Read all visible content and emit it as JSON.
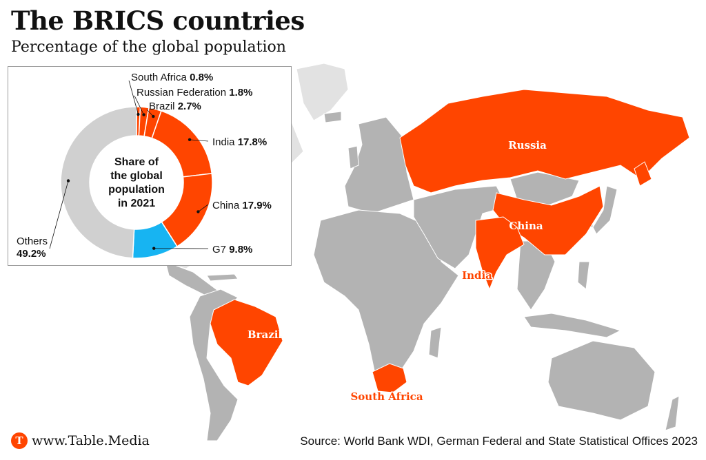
{
  "header": {
    "title": "The BRICS countries",
    "subtitle": "Percentage of the global population"
  },
  "colors": {
    "brics": "#ff4500",
    "g7": "#17b4f2",
    "others": "#d0d0d0",
    "land": "#b3b3b3",
    "light_land": "#e2e2e2"
  },
  "chart_data": {
    "type": "pie",
    "center_label": [
      "Share of",
      "the global",
      "population",
      "in 2021"
    ],
    "slices": [
      {
        "label": "South Africa",
        "value": 0.8,
        "value_text": "0.8%",
        "color": "#ff4500"
      },
      {
        "label": "Russian Federation",
        "value": 1.8,
        "value_text": "1.8%",
        "color": "#ff4500"
      },
      {
        "label": "Brazil",
        "value": 2.7,
        "value_text": "2.7%",
        "color": "#ff4500"
      },
      {
        "label": "India",
        "value": 17.8,
        "value_text": "17.8%",
        "color": "#ff4500"
      },
      {
        "label": "China",
        "value": 17.9,
        "value_text": "17.9%",
        "color": "#ff4500"
      },
      {
        "label": "G7",
        "value": 9.8,
        "value_text": "9.8%",
        "color": "#17b4f2"
      },
      {
        "label": "Others",
        "value": 49.2,
        "value_text": "49.2%",
        "color": "#d0d0d0"
      }
    ]
  },
  "map": {
    "labels": [
      "Russia",
      "China",
      "India",
      "Brazil",
      "South Africa"
    ]
  },
  "footer": {
    "logo": "T",
    "site": "www.Table.Media",
    "source": "Source: World Bank WDI, German Federal and State Statistical Offices 2023"
  }
}
